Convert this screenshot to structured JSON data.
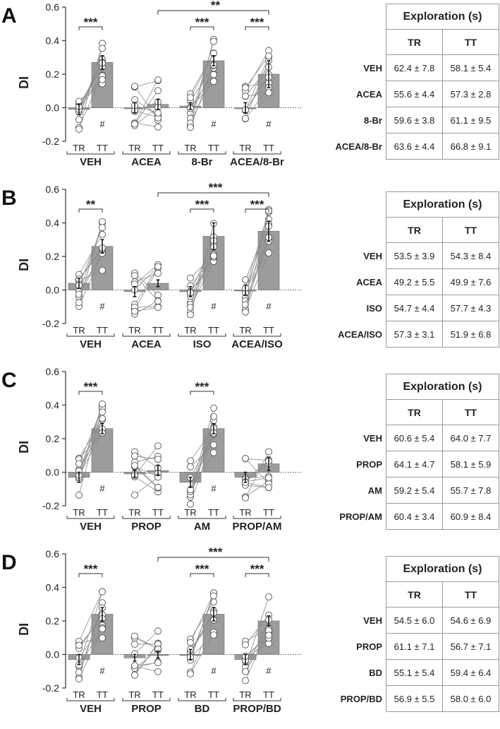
{
  "table_header": "Exploration (s)",
  "table_cols": [
    "TR",
    "TT"
  ],
  "y_axis_label": "DI",
  "sub_labels": [
    "TR",
    "TT"
  ],
  "chart_data": [
    {
      "panel": "A",
      "type": "bar",
      "ylim": [
        -0.2,
        0.6
      ],
      "y_ticks": [
        "0.6",
        "0.4",
        "0.2",
        "0.0",
        "-0.2"
      ],
      "groups": [
        "VEH",
        "ACEA",
        "8-Br",
        "ACEA/8-Br"
      ],
      "series": [
        {
          "name": "TR",
          "values": [
            -0.01,
            0.0,
            0.01,
            0.0
          ],
          "errors": [
            0.03,
            0.03,
            0.02,
            0.03
          ]
        },
        {
          "name": "TT",
          "values": [
            0.27,
            0.02,
            0.28,
            0.2
          ],
          "errors": [
            0.04,
            0.03,
            0.03,
            0.08
          ]
        }
      ],
      "within_sig": [
        "***",
        "",
        "***",
        "***"
      ],
      "hash_marks": [
        "#",
        "",
        "#",
        "#"
      ],
      "between": {
        "from": 1,
        "to": 3,
        "label": "**"
      },
      "table_rows": [
        {
          "label": "VEH",
          "TR": "62.4 ± 7.8",
          "TT": "58.1 ± 5.4"
        },
        {
          "label": "ACEA",
          "TR": "55.6 ± 4.4",
          "TT": "57.3 ± 2.8"
        },
        {
          "label": "8-Br",
          "TR": "59.6 ± 3.8",
          "TT": "61.1 ± 9.5"
        },
        {
          "label": "ACEA/8-Br",
          "TR": "63.6 ± 4.4",
          "TT": "66.8 ± 9.1"
        }
      ]
    },
    {
      "panel": "B",
      "type": "bar",
      "ylim": [
        -0.2,
        0.6
      ],
      "y_ticks": [
        "0.6",
        "0.4",
        "0.2",
        "0.0",
        "-0.2"
      ],
      "groups": [
        "VEH",
        "ACEA",
        "ISO",
        "ACEA/ISO"
      ],
      "series": [
        {
          "name": "TR",
          "values": [
            0.04,
            -0.01,
            -0.01,
            0.0
          ],
          "errors": [
            0.03,
            0.03,
            0.03,
            0.03
          ]
        },
        {
          "name": "TT",
          "values": [
            0.26,
            0.04,
            0.32,
            0.35
          ],
          "errors": [
            0.04,
            0.02,
            0.08,
            0.06
          ]
        }
      ],
      "within_sig": [
        "**",
        "",
        "***",
        "***"
      ],
      "hash_marks": [
        "#",
        "",
        "#",
        "#"
      ],
      "between": {
        "from": 1,
        "to": 3,
        "label": "***"
      },
      "table_rows": [
        {
          "label": "VEH",
          "TR": "53.5 ± 3.9",
          "TT": "54.3 ± 8.4"
        },
        {
          "label": "ACEA",
          "TR": "49.2 ± 5.5",
          "TT": "49.9 ± 7.6"
        },
        {
          "label": "ISO",
          "TR": "54.7 ± 4.4",
          "TT": "57.7 ± 4.3"
        },
        {
          "label": "ACEA/ISO",
          "TR": "57.3 ± 3.1",
          "TT": "51.9 ± 6.8"
        }
      ]
    },
    {
      "panel": "C",
      "type": "bar",
      "ylim": [
        -0.2,
        0.6
      ],
      "y_ticks": [
        "0.6",
        "0.4",
        "0.2",
        "0.0",
        "-0.2"
      ],
      "groups": [
        "VEH",
        "PROP",
        "AM",
        "PROP/AM"
      ],
      "series": [
        {
          "name": "TR",
          "values": [
            -0.03,
            -0.01,
            -0.06,
            -0.03
          ],
          "errors": [
            0.03,
            0.02,
            0.03,
            0.03
          ]
        },
        {
          "name": "TT",
          "values": [
            0.26,
            0.01,
            0.26,
            0.05
          ],
          "errors": [
            0.03,
            0.03,
            0.03,
            0.04
          ]
        }
      ],
      "within_sig": [
        "***",
        "",
        "***",
        ""
      ],
      "hash_marks": [
        "#",
        "",
        "#",
        ""
      ],
      "between": null,
      "table_rows": [
        {
          "label": "VEH",
          "TR": "60.6 ± 5.4",
          "TT": "64.0 ± 7.7"
        },
        {
          "label": "PROP",
          "TR": "64.1 ± 4.7",
          "TT": "58.1 ± 5.9"
        },
        {
          "label": "AM",
          "TR": "59.2 ± 5.4",
          "TT": "55.7 ± 7.8"
        },
        {
          "label": "PROP/AM",
          "TR": "60.4 ± 3.4",
          "TT": "60.9 ± 8.4"
        }
      ]
    },
    {
      "panel": "D",
      "type": "bar",
      "ylim": [
        -0.2,
        0.6
      ],
      "y_ticks": [
        "0.6",
        "0.4",
        "0.2",
        "0.0",
        "-0.2"
      ],
      "groups": [
        "VEH",
        "PROP",
        "BD",
        "PROP/BD"
      ],
      "series": [
        {
          "name": "TR",
          "values": [
            -0.03,
            -0.02,
            0.0,
            -0.03
          ],
          "errors": [
            0.03,
            0.02,
            0.03,
            0.03
          ]
        },
        {
          "name": "TT",
          "values": [
            0.24,
            0.0,
            0.24,
            0.2
          ],
          "errors": [
            0.04,
            0.02,
            0.04,
            0.03
          ]
        }
      ],
      "within_sig": [
        "***",
        "",
        "***",
        "***"
      ],
      "hash_marks": [
        "#",
        "",
        "#",
        "#"
      ],
      "between": {
        "from": 1,
        "to": 3,
        "label": "***"
      },
      "table_rows": [
        {
          "label": "VEH",
          "TR": "54.5 ± 6.0",
          "TT": "54.6 ± 6.9"
        },
        {
          "label": "PROP",
          "TR": "61.1 ± 7.1",
          "TT": "56.7 ± 7.1"
        },
        {
          "label": "BD",
          "TR": "55.1 ± 5.4",
          "TT": "59.4 ± 6.4"
        },
        {
          "label": "PROP/BD",
          "TR": "56.9 ± 5.5",
          "TT": "58.0 ± 6.0"
        }
      ]
    }
  ]
}
